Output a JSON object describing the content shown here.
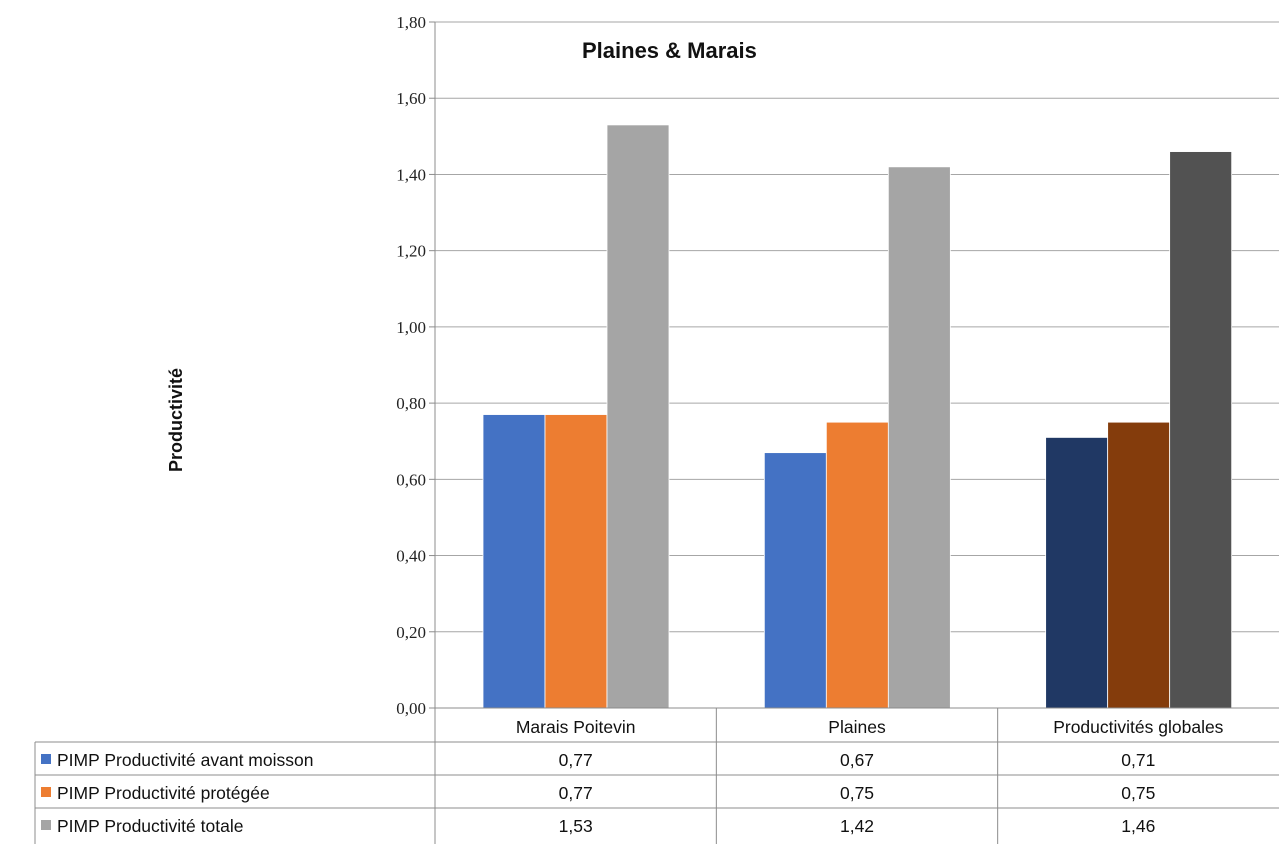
{
  "chart_data": {
    "type": "bar",
    "title": "Plaines & Marais",
    "ylabel": "Productivité",
    "xlabel": "",
    "ylim": [
      0,
      1.8
    ],
    "yticks": [
      "0,00",
      "0,20",
      "0,40",
      "0,60",
      "0,80",
      "1,00",
      "1,20",
      "1,40",
      "1,60",
      "1,80"
    ],
    "grid": true,
    "legend": "data-table-left",
    "categories": [
      "Marais Poitevin",
      "Plaines",
      "Productivités globales"
    ],
    "series": [
      {
        "name": "PIMP Productivité avant moisson",
        "values": [
          0.77,
          0.67,
          0.71
        ],
        "labels": [
          "0,77",
          "0,67",
          "0,71"
        ],
        "colors": [
          "#4472C4",
          "#4472C4",
          "#203864"
        ]
      },
      {
        "name": "PIMP Productivité protégée",
        "values": [
          0.77,
          0.75,
          0.75
        ],
        "labels": [
          "0,77",
          "0,75",
          "0,75"
        ],
        "colors": [
          "#ED7D31",
          "#ED7D31",
          "#843C0C"
        ]
      },
      {
        "name": "PIMP Productivité  totale",
        "values": [
          1.53,
          1.42,
          1.46
        ],
        "labels": [
          "1,53",
          "1,42",
          "1,46"
        ],
        "colors": [
          "#A5A5A5",
          "#A5A5A5",
          "#525252"
        ]
      }
    ],
    "legend_colors": [
      "#4472C4",
      "#ED7D31",
      "#A5A5A5"
    ]
  }
}
